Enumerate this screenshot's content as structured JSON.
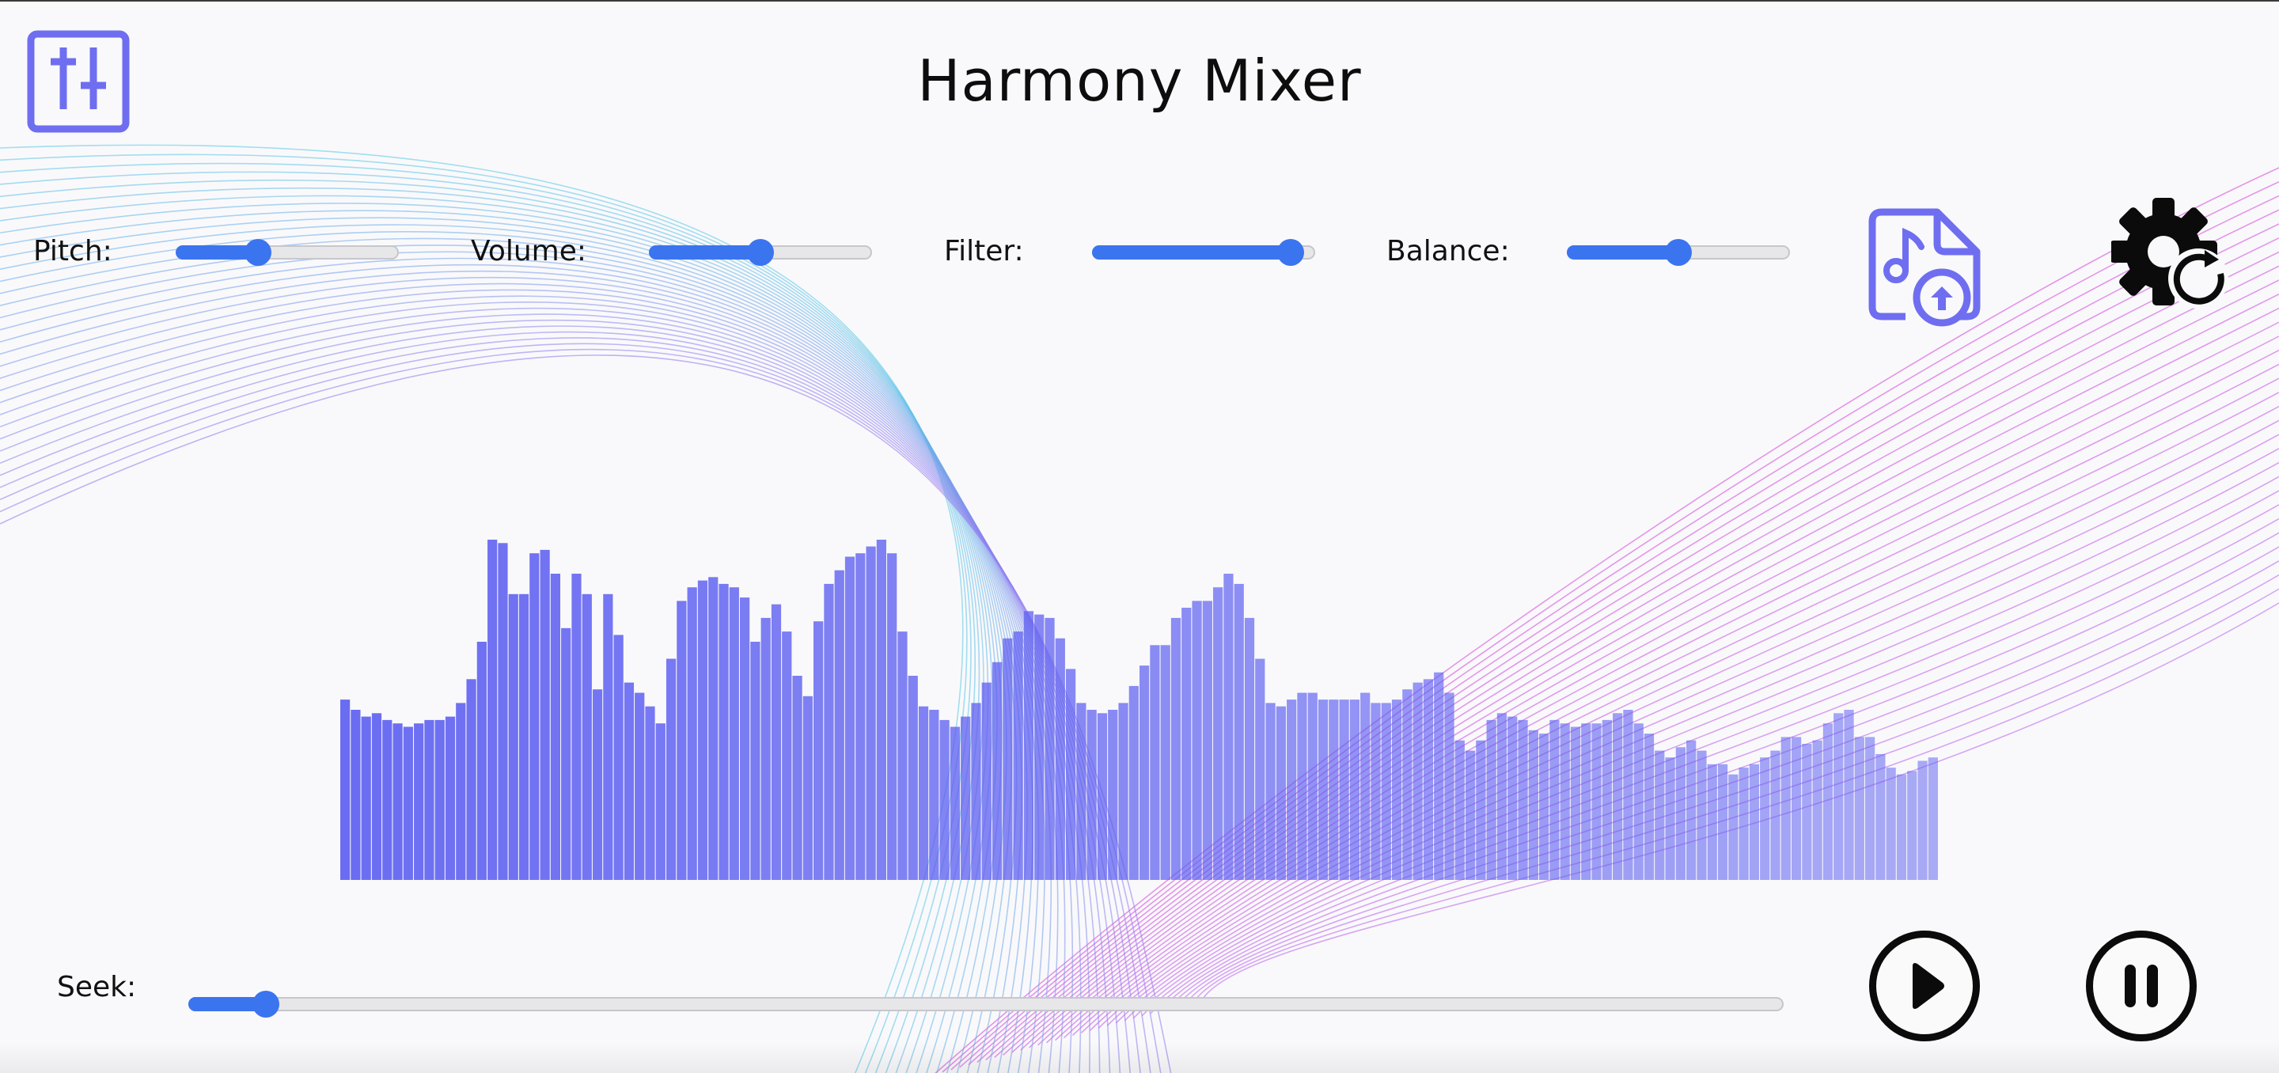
{
  "app": {
    "title": "Harmony Mixer",
    "accent_color": "#3b74ef",
    "icon_color": "#6f6ef0",
    "logo_icon": "mixer-sliders-icon"
  },
  "controls": {
    "pitch": {
      "label": "Pitch:",
      "value": 0.35
    },
    "volume": {
      "label": "Volume:",
      "value": 0.5
    },
    "filter": {
      "label": "Filter:",
      "value": 0.95
    },
    "balance": {
      "label": "Balance:",
      "value": 0.5
    }
  },
  "toolbar": {
    "upload_icon": "upload-music-file-icon",
    "reset_settings_icon": "settings-reset-icon"
  },
  "seek": {
    "label": "Seek:",
    "value": 0.04
  },
  "playback": {
    "play_icon": "play-icon",
    "pause_icon": "pause-icon"
  },
  "waveform": {
    "color": "#5a5cf0",
    "levels": [
      0.53,
      0.5,
      0.48,
      0.49,
      0.47,
      0.46,
      0.45,
      0.46,
      0.47,
      0.47,
      0.48,
      0.52,
      0.59,
      0.7,
      1.0,
      0.99,
      0.84,
      0.84,
      0.96,
      0.97,
      0.9,
      0.74,
      0.9,
      0.84,
      0.56,
      0.84,
      0.72,
      0.58,
      0.55,
      0.51,
      0.46,
      0.65,
      0.82,
      0.86,
      0.88,
      0.89,
      0.87,
      0.86,
      0.83,
      0.7,
      0.77,
      0.81,
      0.73,
      0.6,
      0.54,
      0.76,
      0.87,
      0.91,
      0.95,
      0.96,
      0.98,
      1.0,
      0.96,
      0.73,
      0.6,
      0.51,
      0.5,
      0.47,
      0.45,
      0.48,
      0.52,
      0.58,
      0.64,
      0.71,
      0.73,
      0.79,
      0.78,
      0.77,
      0.71,
      0.62,
      0.52,
      0.5,
      0.49,
      0.5,
      0.52,
      0.57,
      0.63,
      0.69,
      0.69,
      0.77,
      0.8,
      0.82,
      0.82,
      0.86,
      0.9,
      0.87,
      0.77,
      0.65,
      0.52,
      0.51,
      0.53,
      0.55,
      0.55,
      0.53,
      0.53,
      0.53,
      0.53,
      0.55,
      0.52,
      0.52,
      0.53,
      0.56,
      0.58,
      0.59,
      0.61,
      0.55,
      0.41,
      0.38,
      0.41,
      0.47,
      0.49,
      0.48,
      0.47,
      0.44,
      0.43,
      0.47,
      0.46,
      0.45,
      0.46,
      0.46,
      0.47,
      0.49,
      0.5,
      0.46,
      0.43,
      0.38,
      0.36,
      0.39,
      0.41,
      0.38,
      0.34,
      0.34,
      0.31,
      0.33,
      0.34,
      0.36,
      0.38,
      0.42,
      0.42,
      0.4,
      0.41,
      0.46,
      0.49,
      0.5,
      0.42,
      0.42,
      0.37,
      0.33,
      0.31,
      0.32,
      0.35,
      0.36
    ]
  }
}
